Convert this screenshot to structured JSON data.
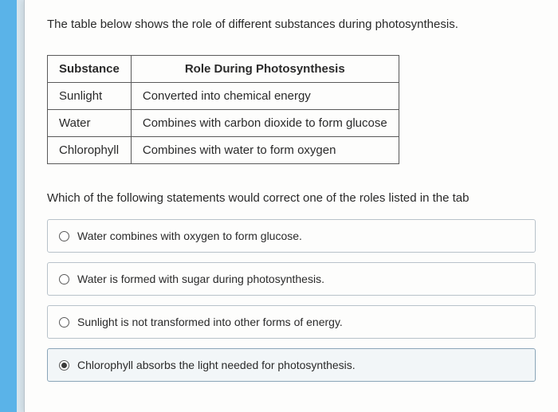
{
  "intro": "The table below shows the role of different substances during photosynthesis.",
  "table": {
    "headers": {
      "col1": "Substance",
      "col2": "Role During Photosynthesis"
    },
    "rows": [
      {
        "substance": "Sunlight",
        "role": "Converted into chemical energy"
      },
      {
        "substance": "Water",
        "role": "Combines with carbon dioxide to form glucose"
      },
      {
        "substance": "Chlorophyll",
        "role": "Combines with water to form oxygen"
      }
    ]
  },
  "question": "Which of the following statements would correct one of the roles listed in the tab",
  "options": [
    {
      "label": "Water combines with oxygen to form glucose.",
      "selected": false
    },
    {
      "label": "Water is formed with sugar during photosynthesis.",
      "selected": false
    },
    {
      "label": "Sunlight is not transformed into other forms of energy.",
      "selected": false
    },
    {
      "label": "Chlorophyll absorbs the light needed for photosynthesis.",
      "selected": true
    }
  ],
  "colors": {
    "border": "#5a5a5a",
    "text": "#2a2a2a",
    "option_border": "#b8c2ca",
    "background": "#fdfdfc"
  }
}
